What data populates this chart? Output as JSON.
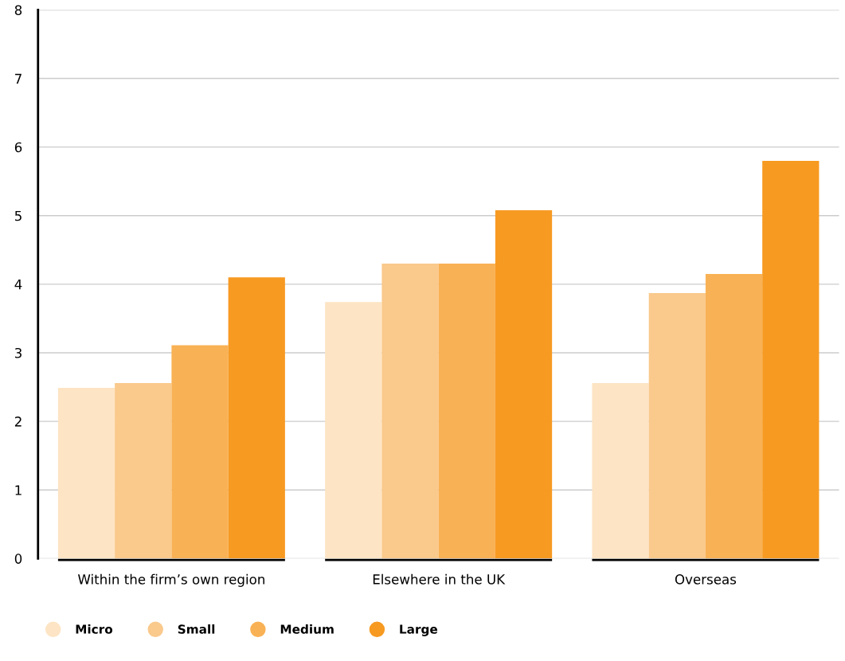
{
  "chart_data": {
    "type": "bar",
    "categories": [
      "Within the firm’s own region",
      "Elsewhere in the UK",
      "Overseas"
    ],
    "series": [
      {
        "name": "Micro",
        "color": "#fde4c4",
        "values": [
          2.49,
          3.74,
          2.56
        ]
      },
      {
        "name": "Small",
        "color": "#fac98c",
        "values": [
          2.56,
          4.3,
          3.87
        ]
      },
      {
        "name": "Medium",
        "color": "#f9b155",
        "values": [
          3.11,
          4.3,
          4.15
        ]
      },
      {
        "name": "Large",
        "color": "#f79a22",
        "values": [
          4.1,
          5.08,
          5.8
        ]
      }
    ],
    "ylim": [
      0,
      8
    ],
    "yticks": [
      0,
      1,
      2,
      3,
      4,
      5,
      6,
      7,
      8
    ],
    "grid": "y",
    "legend": "bottom"
  }
}
